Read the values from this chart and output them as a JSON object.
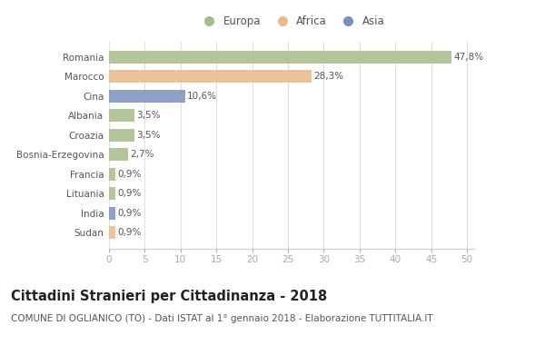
{
  "categories": [
    "Romania",
    "Marocco",
    "Cina",
    "Albania",
    "Croazia",
    "Bosnia-Erzegovina",
    "Francia",
    "Lituania",
    "India",
    "Sudan"
  ],
  "values": [
    47.8,
    28.3,
    10.6,
    3.5,
    3.5,
    2.7,
    0.9,
    0.9,
    0.9,
    0.9
  ],
  "labels": [
    "47,8%",
    "28,3%",
    "10,6%",
    "3,5%",
    "3,5%",
    "2,7%",
    "0,9%",
    "0,9%",
    "0,9%",
    "0,9%"
  ],
  "colors": [
    "#a8bb8a",
    "#e8b98a",
    "#7b8fbf",
    "#a8bb8a",
    "#a8bb8a",
    "#a8bb8a",
    "#a8bb8a",
    "#a8bb8a",
    "#7b8fbf",
    "#e8b98a"
  ],
  "legend_labels": [
    "Europa",
    "Africa",
    "Asia"
  ],
  "legend_colors": [
    "#a8bb8a",
    "#e8b98a",
    "#7b8fbf"
  ],
  "title": "Cittadini Stranieri per Cittadinanza - 2018",
  "subtitle": "COMUNE DI OGLIANICO (TO) - Dati ISTAT al 1° gennaio 2018 - Elaborazione TUTTITALIA.IT",
  "xlim": [
    0,
    51
  ],
  "xticks": [
    0,
    5,
    10,
    15,
    20,
    25,
    30,
    35,
    40,
    45,
    50
  ],
  "background_color": "#ffffff",
  "grid_color": "#e0e0e0",
  "title_fontsize": 10.5,
  "subtitle_fontsize": 7.5,
  "label_fontsize": 7.5,
  "tick_fontsize": 7.5,
  "legend_fontsize": 8.5,
  "bar_height": 0.65
}
